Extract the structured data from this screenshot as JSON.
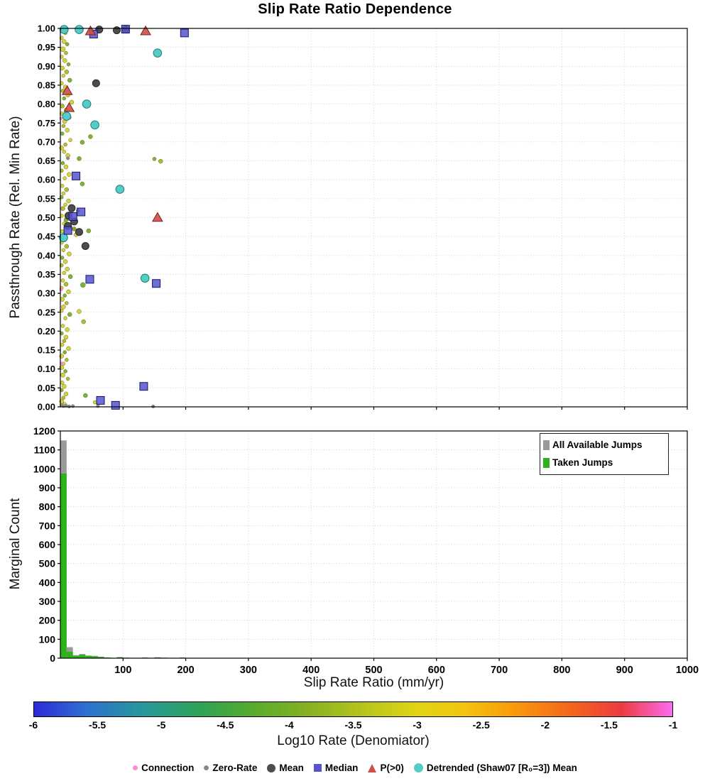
{
  "title": "Slip Rate Ratio Dependence",
  "chart_data": [
    {
      "type": "scatter",
      "ylabel": "Passthrough Rate (Rel. Min Rate)",
      "xlim": [
        0,
        1000
      ],
      "ylim": [
        0,
        1
      ],
      "xtick_step": 100,
      "ytick_step": 0.05,
      "grid": "dotted",
      "point_palette": [
        "#d2cd2e",
        "#a9b326",
        "#6faa2e",
        "#8a8f22"
      ],
      "points": [
        [
          3,
          0.995,
          0,
          3
        ],
        [
          8,
          0.988,
          1,
          2.5
        ],
        [
          2,
          0.975,
          0,
          2.5
        ],
        [
          6,
          0.965,
          0,
          3
        ],
        [
          11,
          0.958,
          2,
          2.5
        ],
        [
          4,
          0.945,
          0,
          3.5
        ],
        [
          9,
          0.935,
          1,
          2.5
        ],
        [
          2,
          0.925,
          0,
          2.5
        ],
        [
          7,
          0.915,
          0,
          3
        ],
        [
          13,
          0.905,
          2,
          2.5
        ],
        [
          3,
          0.895,
          0,
          3
        ],
        [
          10,
          0.885,
          1,
          3
        ],
        [
          5,
          0.875,
          0,
          2.5
        ],
        [
          15,
          0.863,
          2,
          3
        ],
        [
          2,
          0.855,
          0,
          2.5
        ],
        [
          8,
          0.845,
          0,
          3
        ],
        [
          4,
          0.835,
          1,
          2.5
        ],
        [
          12,
          0.824,
          0,
          3
        ],
        [
          6,
          0.815,
          2,
          2.5
        ],
        [
          18,
          0.805,
          0,
          3
        ],
        [
          3,
          0.795,
          1,
          3
        ],
        [
          9,
          0.785,
          0,
          2.5
        ],
        [
          2,
          0.775,
          0,
          2.5
        ],
        [
          14,
          0.765,
          2,
          3
        ],
        [
          7,
          0.754,
          0,
          3
        ],
        [
          5,
          0.742,
          1,
          2.5
        ],
        [
          11,
          0.731,
          0,
          3
        ],
        [
          3,
          0.722,
          2,
          2.5
        ],
        [
          48,
          0.714,
          2,
          3
        ],
        [
          16,
          0.705,
          0,
          2.5
        ],
        [
          35,
          0.699,
          2,
          3
        ],
        [
          8,
          0.693,
          1,
          2.5
        ],
        [
          2,
          0.684,
          0,
          3
        ],
        [
          30,
          0.656,
          2,
          3
        ],
        [
          6,
          0.674,
          0,
          2.5
        ],
        [
          12,
          0.664,
          0,
          3
        ],
        [
          160,
          0.649,
          1,
          3
        ],
        [
          4,
          0.644,
          2,
          2.5
        ],
        [
          9,
          0.634,
          0,
          3
        ],
        [
          2,
          0.624,
          1,
          2.5
        ],
        [
          14,
          0.614,
          0,
          3
        ],
        [
          7,
          0.604,
          0,
          2.5
        ],
        [
          35,
          0.589,
          2,
          3
        ],
        [
          3,
          0.584,
          0,
          2.5
        ],
        [
          10,
          0.574,
          1,
          3
        ],
        [
          5,
          0.564,
          0,
          2.5
        ],
        [
          2,
          0.554,
          2,
          2.5
        ],
        [
          13,
          0.544,
          0,
          3
        ],
        [
          8,
          0.534,
          0,
          2.5
        ],
        [
          4,
          0.524,
          1,
          3
        ],
        [
          17,
          0.514,
          0,
          2.5
        ],
        [
          2,
          0.505,
          0,
          2.5
        ],
        [
          9,
          0.494,
          2,
          3
        ],
        [
          6,
          0.484,
          0,
          2.5
        ],
        [
          12,
          0.474,
          1,
          3
        ],
        [
          3,
          0.464,
          0,
          2.5
        ],
        [
          25,
          0.455,
          0,
          3
        ],
        [
          7,
          0.444,
          2,
          2.5
        ],
        [
          2,
          0.434,
          0,
          2.5
        ],
        [
          10,
          0.424,
          1,
          3
        ],
        [
          5,
          0.414,
          0,
          2.5
        ],
        [
          14,
          0.404,
          0,
          3
        ],
        [
          3,
          0.394,
          2,
          2.5
        ],
        [
          8,
          0.384,
          0,
          3
        ],
        [
          2,
          0.374,
          1,
          2.5
        ],
        [
          11,
          0.364,
          0,
          3
        ],
        [
          6,
          0.354,
          0,
          2.5
        ],
        [
          16,
          0.344,
          2,
          3
        ],
        [
          4,
          0.334,
          0,
          2.5
        ],
        [
          9,
          0.324,
          1,
          3
        ],
        [
          2,
          0.314,
          0,
          2.5
        ],
        [
          13,
          0.304,
          0,
          3
        ],
        [
          7,
          0.294,
          2,
          2.5
        ],
        [
          3,
          0.284,
          0,
          3
        ],
        [
          10,
          0.274,
          1,
          2.5
        ],
        [
          5,
          0.264,
          0,
          3
        ],
        [
          2,
          0.254,
          0,
          2.5
        ],
        [
          15,
          0.244,
          2,
          3
        ],
        [
          8,
          0.234,
          0,
          2.5
        ],
        [
          37,
          0.225,
          1,
          3
        ],
        [
          4,
          0.214,
          0,
          2.5
        ],
        [
          11,
          0.204,
          0,
          3
        ],
        [
          2,
          0.194,
          2,
          2.5
        ],
        [
          9,
          0.184,
          0,
          3
        ],
        [
          6,
          0.174,
          1,
          2.5
        ],
        [
          3,
          0.164,
          0,
          2.5
        ],
        [
          13,
          0.154,
          0,
          3
        ],
        [
          7,
          0.144,
          2,
          2.5
        ],
        [
          2,
          0.134,
          0,
          3
        ],
        [
          10,
          0.124,
          1,
          2.5
        ],
        [
          5,
          0.114,
          0,
          2.5
        ],
        [
          2,
          0.104,
          0,
          3
        ],
        [
          8,
          0.094,
          2,
          2.5
        ],
        [
          4,
          0.084,
          0,
          3
        ],
        [
          12,
          0.074,
          1,
          2.5
        ],
        [
          3,
          0.064,
          0,
          2.5
        ],
        [
          6,
          0.054,
          0,
          3
        ],
        [
          2,
          0.044,
          2,
          2.5
        ],
        [
          9,
          0.034,
          0,
          3
        ],
        [
          5,
          0.024,
          1,
          2.5
        ],
        [
          2,
          0.014,
          0,
          3
        ],
        [
          7,
          0.007,
          0,
          2.5
        ],
        [
          40,
          0.03,
          2,
          3
        ],
        [
          55,
          0.012,
          0,
          2.5
        ],
        [
          22,
          0.47,
          3,
          3
        ],
        [
          28,
          0.518,
          3,
          2.5
        ],
        [
          45,
          0.465,
          2,
          3
        ],
        [
          150,
          0.655,
          2,
          2.5
        ],
        [
          36,
          0.322,
          2,
          3.5
        ],
        [
          30,
          0.252,
          0,
          3
        ]
      ],
      "series": {
        "connection": {
          "label": "Connection",
          "color": "#ff8ad8",
          "points": [
            [
              1,
              0.762
            ],
            [
              1,
              0.31
            ],
            [
              2,
              0.115
            ]
          ]
        },
        "zero_rate": {
          "label": "Zero-Rate",
          "color": "#8a8a8a",
          "points": [
            [
              5,
              0.002
            ],
            [
              9,
              0.003
            ],
            [
              14,
              0.001
            ],
            [
              148,
              0.001
            ],
            [
              2,
              0.004
            ],
            [
              20,
              0.002
            ],
            [
              60,
              0.002
            ],
            [
              12,
              0.657
            ]
          ]
        },
        "mean": {
          "label": "Mean",
          "color": "#4d4d4d",
          "points": [
            [
              57,
              0.855
            ],
            [
              62,
              0.997
            ],
            [
              90,
              0.995
            ],
            [
              104,
              0.997
            ],
            [
              18,
              0.525
            ],
            [
              13,
              0.505
            ],
            [
              22,
              0.49
            ],
            [
              30,
              0.462
            ],
            [
              40,
              0.425
            ],
            [
              12,
              0.478
            ]
          ]
        },
        "median": {
          "label": "Median",
          "color": "#5555cc",
          "points": [
            [
              198,
              0.988
            ],
            [
              53,
              0.985
            ],
            [
              104,
              0.998
            ],
            [
              25,
              0.61
            ],
            [
              33,
              0.515
            ],
            [
              20,
              0.503
            ],
            [
              47,
              0.337
            ],
            [
              153,
              0.326
            ],
            [
              133,
              0.054
            ],
            [
              64,
              0.017
            ],
            [
              88,
              0.004
            ],
            [
              12,
              0.466
            ]
          ]
        },
        "p_gt0": {
          "label": "P(>0)",
          "color": "#cc4f49",
          "points": [
            [
              48,
              0.993
            ],
            [
              136,
              0.993
            ],
            [
              11,
              0.835
            ],
            [
              14,
              0.79
            ],
            [
              155,
              0.5
            ]
          ]
        },
        "detrended": {
          "label": "Detrended (Shaw07 [R₀=3]) Mean",
          "color": "#55ccc6",
          "points": [
            [
              6,
              0.997
            ],
            [
              30,
              0.997
            ],
            [
              155,
              0.935
            ],
            [
              42,
              0.8
            ],
            [
              10,
              0.768
            ],
            [
              55,
              0.745
            ],
            [
              95,
              0.575
            ],
            [
              135,
              0.34
            ],
            [
              5,
              0.447
            ]
          ]
        }
      }
    },
    {
      "type": "bar",
      "ylabel": "Marginal Count",
      "xlabel": "Slip Rate Ratio (mm/yr)",
      "xlim": [
        0,
        1000
      ],
      "ylim": [
        0,
        1200
      ],
      "xtick_step": 100,
      "ytick_step": 100,
      "bin_width": 10,
      "bars_format": "[bin_start, all_available_count, taken_count]",
      "bars": [
        [
          0,
          1150,
          975
        ],
        [
          10,
          58,
          34
        ],
        [
          20,
          16,
          12
        ],
        [
          30,
          22,
          18
        ],
        [
          40,
          14,
          11
        ],
        [
          50,
          12,
          9
        ],
        [
          60,
          8,
          6
        ],
        [
          70,
          4,
          3
        ],
        [
          90,
          6,
          4
        ],
        [
          100,
          3,
          2
        ],
        [
          130,
          4,
          2
        ],
        [
          150,
          5,
          3
        ],
        [
          160,
          3,
          2
        ],
        [
          190,
          4,
          2
        ]
      ],
      "legend": [
        {
          "label": "All Available Jumps",
          "color": "#9a9a9a"
        },
        {
          "label": "Taken Jumps",
          "color": "#2db31a"
        }
      ]
    }
  ],
  "colorbar": {
    "label": "Log10 Rate (Denomiator)",
    "ticks": [
      "-6",
      "-5.5",
      "-5",
      "-4.5",
      "-4",
      "-3.5",
      "-3",
      "-2.5",
      "-2",
      "-1.5",
      "-1"
    ],
    "stops": [
      [
        "#2b2ad8",
        0
      ],
      [
        "#2e6fd2",
        8
      ],
      [
        "#27989b",
        17
      ],
      [
        "#2ea356",
        26
      ],
      [
        "#55ab2c",
        34
      ],
      [
        "#87b222",
        43
      ],
      [
        "#b9c51b",
        52
      ],
      [
        "#e0d414",
        60
      ],
      [
        "#f2c60f",
        67
      ],
      [
        "#f89b0c",
        75
      ],
      [
        "#f4661b",
        84
      ],
      [
        "#ee3a3f",
        92
      ],
      [
        "#fb6cf0",
        100
      ]
    ]
  },
  "marker_legend": [
    {
      "label": "Connection",
      "shape": "circle",
      "color": "#ff8ad8",
      "size": 7
    },
    {
      "label": "Zero-Rate",
      "shape": "circle",
      "color": "#8a8a8a",
      "size": 7
    },
    {
      "label": "Mean",
      "shape": "circle",
      "color": "#4d4d4d",
      "size": 12
    },
    {
      "label": "Median",
      "shape": "square",
      "color": "#5555cc",
      "size": 11
    },
    {
      "label": "P(>0)",
      "shape": "triangle",
      "color": "#cc4f49",
      "size": 12
    },
    {
      "label": "Detrended (Shaw07 [R₀=3]) Mean",
      "shape": "circle",
      "color": "#55ccc6",
      "size": 13
    }
  ]
}
